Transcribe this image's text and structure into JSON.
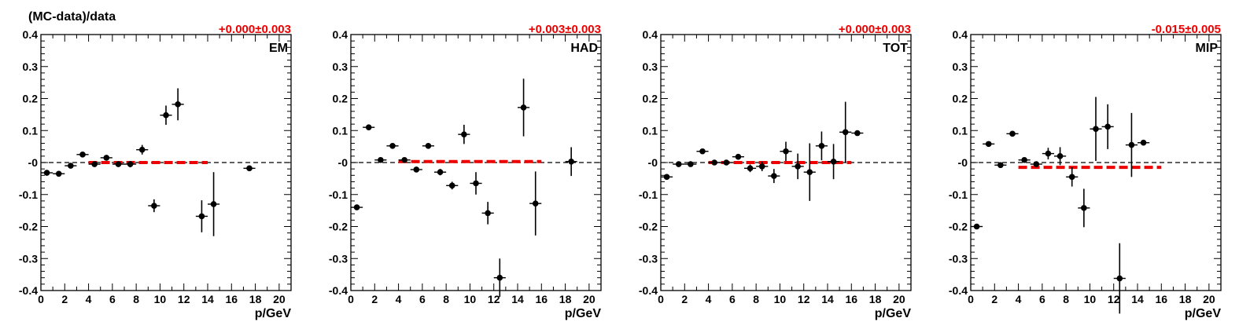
{
  "figure": {
    "ylabel": "(MC-data)/data",
    "colors": {
      "points": "#000000",
      "fit": "#ee0000",
      "zero_line": "#000000"
    }
  },
  "chart_data": [
    {
      "type": "scatter",
      "panel_label": "EM",
      "offset_label": "+0.000±0.003",
      "offset_value": 0.0,
      "offset_error": 0.003,
      "fit_x_range": [
        4,
        14
      ],
      "xlabel": "p/GeV",
      "xlim": [
        0,
        21
      ],
      "ylim": [
        -0.4,
        0.4
      ],
      "xticks": [
        "0",
        "2",
        "4",
        "6",
        "8",
        "10",
        "12",
        "14",
        "16",
        "18",
        "20"
      ],
      "yticks": [
        "-0.4",
        "-0.3",
        "-0.2",
        "-0.1",
        "-0",
        "0.1",
        "0.2",
        "0.3",
        "0.4"
      ],
      "points": [
        {
          "x": 0.5,
          "y": -0.032,
          "err": 0.005
        },
        {
          "x": 1.5,
          "y": -0.035,
          "err": 0.005
        },
        {
          "x": 2.5,
          "y": -0.01,
          "err": 0.006
        },
        {
          "x": 3.5,
          "y": 0.025,
          "err": 0.006
        },
        {
          "x": 4.5,
          "y": -0.005,
          "err": 0.007
        },
        {
          "x": 5.5,
          "y": 0.015,
          "err": 0.008
        },
        {
          "x": 6.5,
          "y": -0.005,
          "err": 0.008
        },
        {
          "x": 7.5,
          "y": -0.005,
          "err": 0.01
        },
        {
          "x": 8.5,
          "y": 0.04,
          "err": 0.015
        },
        {
          "x": 9.5,
          "y": -0.135,
          "err": 0.02
        },
        {
          "x": 10.5,
          "y": 0.148,
          "err": 0.03
        },
        {
          "x": 11.5,
          "y": 0.182,
          "err": 0.05
        },
        {
          "x": 13.5,
          "y": -0.168,
          "err": 0.05
        },
        {
          "x": 14.5,
          "y": -0.13,
          "err": 0.1
        },
        {
          "x": 17.5,
          "y": -0.018,
          "err": 0.005
        }
      ]
    },
    {
      "type": "scatter",
      "panel_label": "HAD",
      "offset_label": "+0.003±0.003",
      "offset_value": 0.003,
      "offset_error": 0.003,
      "fit_x_range": [
        4,
        16
      ],
      "xlabel": "p/GeV",
      "xlim": [
        0,
        21
      ],
      "ylim": [
        -0.4,
        0.4
      ],
      "xticks": [
        "0",
        "2",
        "4",
        "6",
        "8",
        "10",
        "12",
        "14",
        "16",
        "18",
        "20"
      ],
      "yticks": [
        "-0.4",
        "-0.3",
        "-0.2",
        "-0.1",
        "-0",
        "0.1",
        "0.2",
        "0.3",
        "0.4"
      ],
      "points": [
        {
          "x": 0.5,
          "y": -0.14,
          "err": 0.005
        },
        {
          "x": 1.5,
          "y": 0.11,
          "err": 0.005
        },
        {
          "x": 2.5,
          "y": 0.008,
          "err": 0.006
        },
        {
          "x": 3.5,
          "y": 0.052,
          "err": 0.006
        },
        {
          "x": 4.5,
          "y": 0.008,
          "err": 0.007
        },
        {
          "x": 5.5,
          "y": -0.022,
          "err": 0.007
        },
        {
          "x": 6.5,
          "y": 0.052,
          "err": 0.008
        },
        {
          "x": 7.5,
          "y": -0.03,
          "err": 0.01
        },
        {
          "x": 8.5,
          "y": -0.072,
          "err": 0.012
        },
        {
          "x": 9.5,
          "y": 0.088,
          "err": 0.03
        },
        {
          "x": 10.5,
          "y": -0.065,
          "err": 0.035
        },
        {
          "x": 11.5,
          "y": -0.158,
          "err": 0.035
        },
        {
          "x": 12.5,
          "y": -0.36,
          "err": 0.06
        },
        {
          "x": 14.5,
          "y": 0.172,
          "err": 0.09
        },
        {
          "x": 15.5,
          "y": -0.128,
          "err": 0.1
        },
        {
          "x": 18.5,
          "y": 0.003,
          "err": 0.045
        }
      ]
    },
    {
      "type": "scatter",
      "panel_label": "TOT",
      "offset_label": "+0.000±0.003",
      "offset_value": 0.0,
      "offset_error": 0.003,
      "fit_x_range": [
        4,
        16
      ],
      "xlabel": "p/GeV",
      "xlim": [
        0,
        21
      ],
      "ylim": [
        -0.4,
        0.4
      ],
      "xticks": [
        "0",
        "2",
        "4",
        "6",
        "8",
        "10",
        "12",
        "14",
        "16",
        "18",
        "20"
      ],
      "yticks": [
        "-0.4",
        "-0.3",
        "-0.2",
        "-0.1",
        "-0",
        "0.1",
        "0.2",
        "0.3",
        "0.4"
      ],
      "points": [
        {
          "x": 0.5,
          "y": -0.045,
          "err": 0.006
        },
        {
          "x": 1.5,
          "y": -0.005,
          "err": 0.005
        },
        {
          "x": 2.5,
          "y": -0.005,
          "err": 0.006
        },
        {
          "x": 3.5,
          "y": 0.035,
          "err": 0.006
        },
        {
          "x": 4.5,
          "y": 0.0,
          "err": 0.006
        },
        {
          "x": 5.5,
          "y": 0.0,
          "err": 0.007
        },
        {
          "x": 6.5,
          "y": 0.018,
          "err": 0.008
        },
        {
          "x": 7.5,
          "y": -0.018,
          "err": 0.012
        },
        {
          "x": 8.5,
          "y": -0.012,
          "err": 0.015
        },
        {
          "x": 9.5,
          "y": -0.042,
          "err": 0.022
        },
        {
          "x": 10.5,
          "y": 0.035,
          "err": 0.03
        },
        {
          "x": 11.5,
          "y": -0.012,
          "err": 0.04
        },
        {
          "x": 12.5,
          "y": -0.03,
          "err": 0.09
        },
        {
          "x": 13.5,
          "y": 0.052,
          "err": 0.045
        },
        {
          "x": 14.5,
          "y": 0.003,
          "err": 0.055
        },
        {
          "x": 15.5,
          "y": 0.095,
          "err": 0.095
        },
        {
          "x": 16.5,
          "y": 0.092,
          "err": 0.005
        }
      ]
    },
    {
      "type": "scatter",
      "panel_label": "MIP",
      "offset_label": "-0.015±0.005",
      "offset_value": -0.015,
      "offset_error": 0.005,
      "fit_x_range": [
        4,
        16
      ],
      "xlabel": "p/GeV",
      "xlim": [
        0,
        21
      ],
      "ylim": [
        -0.4,
        0.4
      ],
      "xticks": [
        "0",
        "2",
        "4",
        "6",
        "8",
        "10",
        "12",
        "14",
        "16",
        "18",
        "20"
      ],
      "yticks": [
        "-0.4",
        "-0.3",
        "-0.2",
        "-0.1",
        "-0",
        "0.1",
        "0.2",
        "0.3",
        "0.4"
      ],
      "points": [
        {
          "x": 0.5,
          "y": -0.2,
          "err": 0.005
        },
        {
          "x": 1.5,
          "y": 0.058,
          "err": 0.005
        },
        {
          "x": 2.5,
          "y": -0.008,
          "err": 0.005
        },
        {
          "x": 3.5,
          "y": 0.09,
          "err": 0.006
        },
        {
          "x": 4.5,
          "y": 0.008,
          "err": 0.007
        },
        {
          "x": 5.5,
          "y": -0.005,
          "err": 0.007
        },
        {
          "x": 6.5,
          "y": 0.028,
          "err": 0.018
        },
        {
          "x": 7.5,
          "y": 0.02,
          "err": 0.028
        },
        {
          "x": 8.5,
          "y": -0.045,
          "err": 0.03
        },
        {
          "x": 9.5,
          "y": -0.142,
          "err": 0.06
        },
        {
          "x": 10.5,
          "y": 0.105,
          "err": 0.1
        },
        {
          "x": 11.5,
          "y": 0.112,
          "err": 0.07
        },
        {
          "x": 12.5,
          "y": -0.362,
          "err": 0.11
        },
        {
          "x": 13.5,
          "y": 0.055,
          "err": 0.1
        },
        {
          "x": 14.5,
          "y": 0.062,
          "err": 0.006
        }
      ]
    }
  ]
}
